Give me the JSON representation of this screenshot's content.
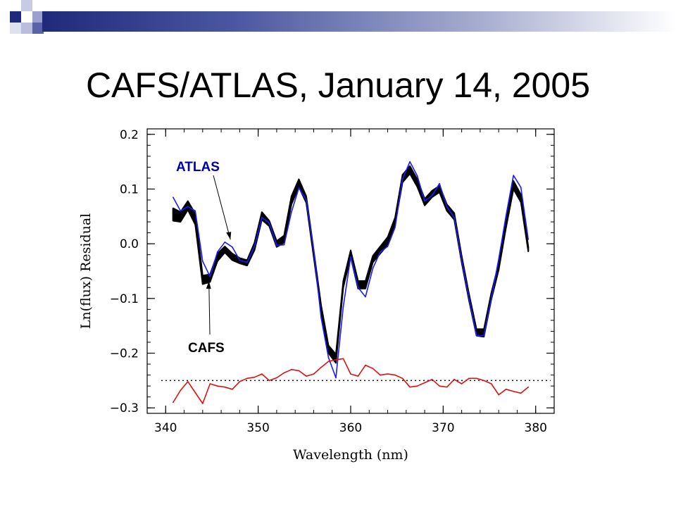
{
  "slide": {
    "title": "CAFS/ATLAS, January 14, 2005"
  },
  "colors": {
    "accent": "#1f2a7a",
    "cafs": "#000000",
    "atlas": "#1a1aff",
    "residual_diff": "#dd1111",
    "reference": "#000000",
    "atlas_label": "#0000aa"
  },
  "chart_data": {
    "type": "line",
    "xlabel": "Wavelength (nm)",
    "ylabel": "Ln(flux) Residual",
    "xlim": [
      338,
      382
    ],
    "ylim": [
      -0.31,
      0.21
    ],
    "xticks": [
      "340",
      "350",
      "360",
      "370",
      "380"
    ],
    "xtick_values": [
      340,
      350,
      360,
      370,
      380
    ],
    "yticks": [
      "0.2",
      "0.1",
      "0.0",
      "−0.1",
      "−0.2",
      "−0.3"
    ],
    "ytick_values": [
      0.2,
      0.1,
      0.0,
      -0.1,
      -0.2,
      -0.3
    ],
    "grid": false,
    "reference_line": -0.25,
    "annotations": [
      {
        "text": "ATLAS",
        "series": "ATLAS",
        "points_to": [
          347.0,
          0.005
        ]
      },
      {
        "text": "CAFS",
        "series": "CAFS",
        "points_to": [
          344.6,
          -0.063
        ]
      }
    ],
    "series": [
      {
        "name": "CAFS",
        "style": "band",
        "x": [
          340.8,
          341.6,
          342.4,
          343.2,
          344.0,
          344.8,
          345.6,
          346.4,
          347.2,
          348.0,
          348.8,
          349.6,
          350.4,
          351.2,
          352.0,
          352.8,
          353.6,
          354.4,
          355.2,
          356.0,
          356.8,
          357.6,
          358.4,
          359.2,
          360.0,
          360.8,
          361.6,
          362.4,
          363.2,
          364.0,
          364.8,
          365.6,
          366.4,
          367.2,
          368.0,
          368.8,
          369.6,
          370.4,
          371.2,
          372.0,
          372.8,
          373.6,
          374.4,
          375.2,
          376.0,
          376.8,
          377.6,
          378.4,
          379.2
        ],
        "upper": [
          0.065,
          0.058,
          0.078,
          0.055,
          -0.058,
          -0.056,
          -0.018,
          -0.005,
          -0.018,
          -0.026,
          -0.03,
          0.002,
          0.058,
          0.042,
          0.005,
          0.015,
          0.087,
          0.118,
          0.087,
          -0.012,
          -0.112,
          -0.186,
          -0.202,
          -0.068,
          -0.012,
          -0.068,
          -0.068,
          -0.022,
          -0.005,
          0.012,
          0.048,
          0.126,
          0.142,
          0.118,
          0.082,
          0.097,
          0.106,
          0.072,
          0.056,
          -0.022,
          -0.092,
          -0.156,
          -0.156,
          -0.09,
          -0.036,
          0.042,
          0.115,
          0.09,
          -0.005
        ],
        "lower": [
          0.042,
          0.04,
          0.062,
          0.035,
          -0.074,
          -0.07,
          -0.032,
          -0.016,
          -0.03,
          -0.036,
          -0.04,
          -0.012,
          0.044,
          0.032,
          -0.006,
          0.002,
          0.072,
          0.104,
          0.075,
          -0.024,
          -0.124,
          -0.2,
          -0.218,
          -0.08,
          -0.024,
          -0.082,
          -0.082,
          -0.034,
          -0.018,
          -0.002,
          0.036,
          0.112,
          0.128,
          0.104,
          0.07,
          0.085,
          0.094,
          0.06,
          0.044,
          -0.034,
          -0.104,
          -0.168,
          -0.17,
          -0.102,
          -0.048,
          0.03,
          0.1,
          0.076,
          -0.014
        ]
      },
      {
        "name": "ATLAS",
        "style": "line",
        "x": [
          340.8,
          341.6,
          342.4,
          343.2,
          344.0,
          344.8,
          345.6,
          346.4,
          347.2,
          348.0,
          348.8,
          349.6,
          350.4,
          351.2,
          352.0,
          352.8,
          353.6,
          354.4,
          355.2,
          356.0,
          356.8,
          357.6,
          358.4,
          359.2,
          360.0,
          360.8,
          361.6,
          362.4,
          363.2,
          364.0,
          364.8,
          365.6,
          366.4,
          367.2,
          368.0,
          368.8,
          369.6,
          370.4,
          371.2,
          372.0,
          372.8,
          373.6,
          374.4,
          375.2,
          376.0,
          376.8,
          377.6,
          378.4,
          379.2
        ],
        "y": [
          0.085,
          0.06,
          0.068,
          0.06,
          -0.032,
          -0.06,
          -0.015,
          0.003,
          -0.006,
          -0.03,
          -0.034,
          -0.005,
          0.048,
          0.038,
          -0.003,
          -0.002,
          0.058,
          0.102,
          0.08,
          -0.012,
          -0.135,
          -0.208,
          -0.245,
          -0.115,
          -0.024,
          -0.08,
          -0.097,
          -0.045,
          -0.015,
          -0.005,
          0.03,
          0.118,
          0.15,
          0.124,
          0.078,
          0.088,
          0.11,
          0.068,
          0.048,
          -0.03,
          -0.1,
          -0.168,
          -0.168,
          -0.1,
          -0.028,
          0.052,
          0.125,
          0.103,
          0.008
        ]
      },
      {
        "name": "",
        "style": "line",
        "role": "CAFS minus ATLAS, offset",
        "x": [
          340.8,
          341.6,
          342.4,
          343.2,
          344.0,
          344.8,
          345.6,
          346.4,
          347.2,
          348.0,
          348.8,
          349.6,
          350.4,
          351.2,
          352.0,
          352.8,
          353.6,
          354.4,
          355.2,
          356.0,
          356.8,
          357.6,
          358.4,
          359.2,
          360.0,
          360.8,
          361.6,
          362.4,
          363.2,
          364.0,
          364.8,
          365.6,
          366.4,
          367.2,
          368.0,
          368.8,
          369.6,
          370.4,
          371.2,
          372.0,
          372.8,
          373.6,
          374.4,
          375.2,
          376.0,
          376.8,
          377.6,
          378.4,
          379.2
        ],
        "y": [
          -0.29,
          -0.268,
          -0.252,
          -0.272,
          -0.292,
          -0.256,
          -0.26,
          -0.262,
          -0.266,
          -0.252,
          -0.246,
          -0.244,
          -0.238,
          -0.25,
          -0.245,
          -0.236,
          -0.23,
          -0.232,
          -0.242,
          -0.238,
          -0.226,
          -0.215,
          -0.212,
          -0.21,
          -0.238,
          -0.242,
          -0.222,
          -0.228,
          -0.24,
          -0.238,
          -0.24,
          -0.246,
          -0.262,
          -0.26,
          -0.254,
          -0.248,
          -0.26,
          -0.262,
          -0.248,
          -0.256,
          -0.246,
          -0.246,
          -0.25,
          -0.256,
          -0.276,
          -0.266,
          -0.27,
          -0.273,
          -0.262
        ]
      }
    ]
  }
}
